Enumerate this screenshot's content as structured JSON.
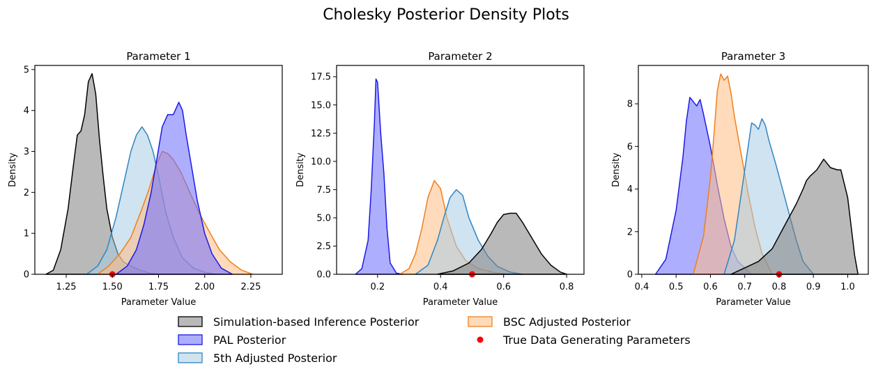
{
  "figure": {
    "title": "Cholesky Posterior Density Plots"
  },
  "colors": {
    "sbi": "#808080",
    "sbi_line": "#000000",
    "pal": "#6b6bff",
    "pal_line": "#1a1ae6",
    "fifth": "#a9cce3",
    "fifth_line": "#2e86c1",
    "bsc": "#ffbe85",
    "bsc_line": "#f07f1b",
    "truth": "#ff0000"
  },
  "legend": {
    "placement": "bottom-center",
    "items": [
      {
        "key": "sbi",
        "label": "Simulation-based Inference Posterior",
        "kind": "patch"
      },
      {
        "key": "bsc",
        "label": "BSC Adjusted Posterior",
        "kind": "patch"
      },
      {
        "key": "pal",
        "label": "PAL Posterior",
        "kind": "patch"
      },
      {
        "key": "truth",
        "label": "True Data Generating Parameters",
        "kind": "dot"
      },
      {
        "key": "fifth",
        "label": "5th Adjusted Posterior",
        "kind": "patch"
      }
    ]
  },
  "chart_data": [
    {
      "type": "area",
      "title": "Parameter 1",
      "xlabel": "Parameter Value",
      "ylabel": "Density",
      "xlim": [
        1.08,
        2.42
      ],
      "ylim": [
        0,
        5.1
      ],
      "xticks": [
        1.25,
        1.5,
        1.75,
        2.0,
        2.25
      ],
      "xtick_labels": [
        "1.25",
        "1.50",
        "1.75",
        "2.00",
        "2.25"
      ],
      "yticks": [
        0,
        1,
        2,
        3,
        4,
        5
      ],
      "ytick_labels": [
        "0",
        "1",
        "2",
        "3",
        "4",
        "5"
      ],
      "truth": {
        "x": 1.5,
        "y": 0
      },
      "series": [
        {
          "key": "sbi",
          "x": [
            1.14,
            1.18,
            1.22,
            1.26,
            1.29,
            1.31,
            1.33,
            1.35,
            1.37,
            1.39,
            1.41,
            1.43,
            1.45,
            1.47,
            1.5,
            1.53,
            1.56,
            1.6,
            1.65,
            1.7,
            1.76
          ],
          "y": [
            0,
            0.1,
            0.6,
            1.6,
            2.7,
            3.4,
            3.5,
            3.9,
            4.7,
            4.9,
            4.4,
            3.3,
            2.4,
            1.6,
            0.9,
            0.5,
            0.3,
            0.2,
            0.1,
            0.03,
            0
          ]
        },
        {
          "key": "fifth",
          "x": [
            1.36,
            1.42,
            1.47,
            1.52,
            1.56,
            1.6,
            1.63,
            1.66,
            1.69,
            1.72,
            1.75,
            1.79,
            1.83,
            1.88,
            1.94,
            2.0,
            2.06
          ],
          "y": [
            0,
            0.2,
            0.6,
            1.4,
            2.2,
            3.0,
            3.4,
            3.6,
            3.4,
            3.0,
            2.4,
            1.5,
            0.9,
            0.4,
            0.15,
            0.05,
            0
          ]
        },
        {
          "key": "bsc",
          "x": [
            1.42,
            1.48,
            1.54,
            1.6,
            1.66,
            1.7,
            1.74,
            1.77,
            1.8,
            1.83,
            1.87,
            1.92,
            1.97,
            2.03,
            2.08,
            2.14,
            2.2,
            2.26
          ],
          "y": [
            0,
            0.2,
            0.5,
            0.9,
            1.6,
            2.1,
            2.7,
            3.0,
            2.95,
            2.8,
            2.5,
            2.0,
            1.5,
            1.0,
            0.6,
            0.3,
            0.1,
            0
          ]
        },
        {
          "key": "pal",
          "x": [
            1.52,
            1.58,
            1.63,
            1.67,
            1.71,
            1.74,
            1.77,
            1.8,
            1.83,
            1.86,
            1.88,
            1.9,
            1.93,
            1.96,
            2.0,
            2.04,
            2.09,
            2.15
          ],
          "y": [
            0,
            0.2,
            0.6,
            1.2,
            2.0,
            2.8,
            3.6,
            3.9,
            3.9,
            4.2,
            4.0,
            3.4,
            2.6,
            1.8,
            1.0,
            0.5,
            0.15,
            0
          ]
        }
      ]
    },
    {
      "type": "area",
      "title": "Parameter 2",
      "xlabel": "Parameter Value",
      "ylabel": "Density",
      "xlim": [
        0.07,
        0.855
      ],
      "ylim": [
        0,
        18.5
      ],
      "xticks": [
        0.2,
        0.4,
        0.6,
        0.8
      ],
      "xtick_labels": [
        "0.2",
        "0.4",
        "0.6",
        "0.8"
      ],
      "yticks": [
        0,
        2.5,
        5.0,
        7.5,
        10.0,
        12.5,
        15.0,
        17.5
      ],
      "ytick_labels": [
        "0.0",
        "2.5",
        "5.0",
        "7.5",
        "10.0",
        "12.5",
        "15.0",
        "17.5"
      ],
      "truth": {
        "x": 0.5,
        "y": 0
      },
      "series": [
        {
          "key": "pal",
          "x": [
            0.13,
            0.15,
            0.17,
            0.18,
            0.19,
            0.195,
            0.2,
            0.21,
            0.22,
            0.23,
            0.24,
            0.26,
            0.28
          ],
          "y": [
            0,
            0.5,
            3.0,
            7.5,
            13.5,
            17.3,
            17.0,
            12.5,
            9.0,
            4.0,
            1.0,
            0.1,
            0
          ]
        },
        {
          "key": "bsc",
          "x": [
            0.27,
            0.3,
            0.32,
            0.34,
            0.36,
            0.38,
            0.4,
            0.42,
            0.45,
            0.48,
            0.52,
            0.57,
            0.62
          ],
          "y": [
            0,
            0.5,
            1.8,
            4.0,
            6.8,
            8.3,
            7.6,
            5.0,
            2.5,
            1.2,
            0.5,
            0.15,
            0
          ]
        },
        {
          "key": "fifth",
          "x": [
            0.32,
            0.36,
            0.39,
            0.41,
            0.43,
            0.45,
            0.47,
            0.49,
            0.52,
            0.55,
            0.58,
            0.62,
            0.66
          ],
          "y": [
            0,
            0.8,
            3.0,
            5.0,
            6.8,
            7.5,
            7.0,
            5.0,
            3.0,
            1.6,
            0.7,
            0.2,
            0
          ]
        },
        {
          "key": "sbi",
          "x": [
            0.39,
            0.44,
            0.49,
            0.53,
            0.56,
            0.58,
            0.6,
            0.62,
            0.64,
            0.66,
            0.69,
            0.72,
            0.75,
            0.78,
            0.8
          ],
          "y": [
            0,
            0.3,
            1.0,
            2.2,
            3.6,
            4.6,
            5.3,
            5.4,
            5.4,
            4.6,
            3.2,
            1.8,
            0.8,
            0.2,
            0
          ]
        }
      ]
    },
    {
      "type": "area",
      "title": "Parameter 3",
      "xlabel": "Parameter Value",
      "ylabel": "Density",
      "xlim": [
        0.39,
        1.06
      ],
      "ylim": [
        0,
        9.8
      ],
      "xticks": [
        0.4,
        0.5,
        0.6,
        0.7,
        0.8,
        0.9,
        1.0
      ],
      "xtick_labels": [
        "0.4",
        "0.5",
        "0.6",
        "0.7",
        "0.8",
        "0.9",
        "1.0"
      ],
      "yticks": [
        0,
        2,
        4,
        6,
        8
      ],
      "ytick_labels": [
        "0",
        "2",
        "4",
        "6",
        "8"
      ],
      "truth": {
        "x": 0.8,
        "y": 0
      },
      "series": [
        {
          "key": "pal",
          "x": [
            0.44,
            0.47,
            0.5,
            0.52,
            0.53,
            0.54,
            0.55,
            0.56,
            0.57,
            0.58,
            0.6,
            0.62,
            0.64,
            0.66,
            0.68,
            0.7,
            0.72
          ],
          "y": [
            0,
            0.7,
            3.0,
            5.5,
            7.2,
            8.3,
            8.1,
            7.9,
            8.2,
            7.5,
            6.0,
            4.2,
            2.6,
            1.3,
            0.6,
            0.3,
            0
          ]
        },
        {
          "key": "bsc",
          "x": [
            0.55,
            0.58,
            0.6,
            0.61,
            0.62,
            0.63,
            0.64,
            0.65,
            0.66,
            0.67,
            0.69,
            0.71,
            0.73,
            0.75,
            0.78
          ],
          "y": [
            0,
            1.8,
            4.5,
            6.5,
            8.6,
            9.4,
            9.1,
            9.3,
            8.5,
            7.4,
            5.6,
            3.8,
            2.2,
            1.0,
            0
          ]
        },
        {
          "key": "fifth",
          "x": [
            0.64,
            0.67,
            0.69,
            0.71,
            0.72,
            0.73,
            0.74,
            0.75,
            0.76,
            0.77,
            0.79,
            0.81,
            0.83,
            0.85,
            0.87,
            0.9
          ],
          "y": [
            0,
            1.6,
            3.8,
            6.0,
            7.1,
            7.0,
            6.8,
            7.3,
            7.0,
            6.3,
            5.2,
            4.0,
            2.8,
            1.6,
            0.6,
            0
          ]
        },
        {
          "key": "sbi",
          "x": [
            0.66,
            0.7,
            0.74,
            0.78,
            0.82,
            0.85,
            0.87,
            0.88,
            0.89,
            0.91,
            0.93,
            0.95,
            0.97,
            0.98,
            1.0,
            1.02,
            1.03
          ],
          "y": [
            0,
            0.3,
            0.6,
            1.2,
            2.4,
            3.3,
            4.0,
            4.4,
            4.6,
            4.9,
            5.4,
            5.0,
            4.9,
            4.9,
            3.6,
            0.9,
            0
          ]
        }
      ]
    }
  ]
}
